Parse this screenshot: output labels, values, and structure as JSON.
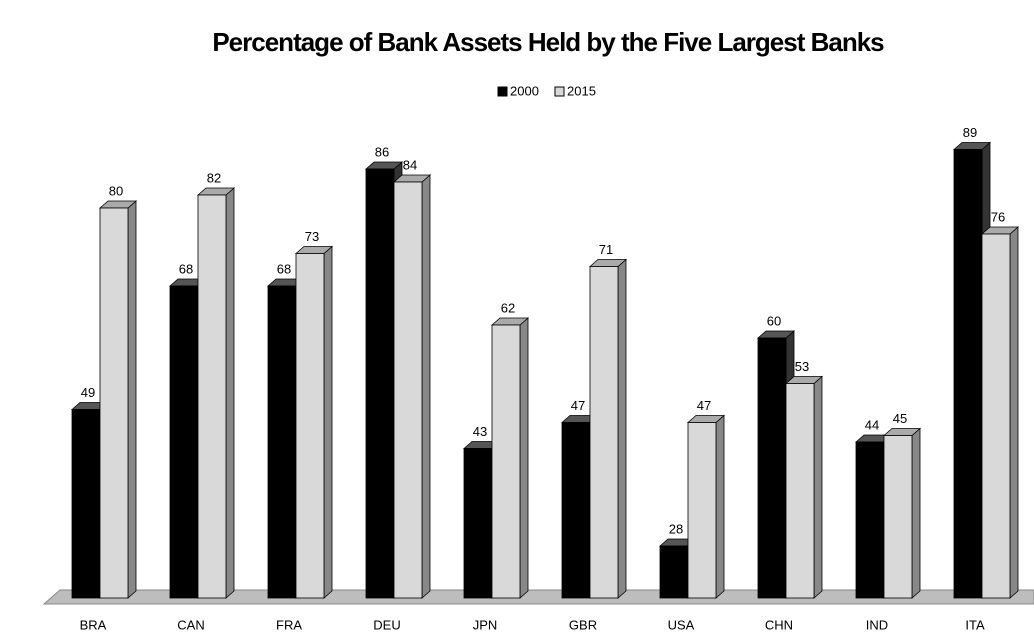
{
  "chart_data": {
    "type": "bar3d",
    "title": "Percentage of Bank Assets Held by the Five Largest Banks",
    "categories": [
      "BRA",
      "CAN",
      "FRA",
      "DEU",
      "JPN",
      "GBR",
      "USA",
      "CHN",
      "IND",
      "ITA"
    ],
    "series": [
      {
        "name": "2000",
        "color": "#000000",
        "values": [
          49,
          68,
          68,
          86,
          43,
          47,
          28,
          60,
          44,
          89
        ]
      },
      {
        "name": "2015",
        "color": "#d9d9d9",
        "values": [
          80,
          82,
          73,
          84,
          62,
          71,
          47,
          53,
          45,
          76
        ]
      }
    ],
    "ylim": [
      20,
      90
    ]
  }
}
